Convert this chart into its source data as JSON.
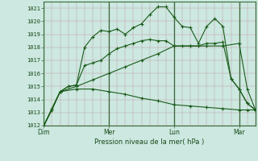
{
  "bg_color": "#cce8e0",
  "line_color": "#1a5c1a",
  "xlabel": "Pression niveau de la mer( hPa )",
  "ylim": [
    1012,
    1021.5
  ],
  "yticks": [
    1012,
    1013,
    1014,
    1015,
    1016,
    1017,
    1018,
    1019,
    1020,
    1021
  ],
  "xtick_labels": [
    "Dim",
    "Mer",
    "Lun",
    "Mar"
  ],
  "xtick_positions": [
    0,
    48,
    96,
    144
  ],
  "vline_positions": [
    0,
    48,
    96,
    144
  ],
  "series1": {
    "x": [
      0,
      6,
      12,
      18,
      24,
      30,
      36,
      42,
      48,
      54,
      60,
      66,
      72,
      78,
      84,
      90,
      96,
      102,
      108,
      114,
      120,
      126,
      132,
      138,
      144,
      150,
      156
    ],
    "y": [
      1012.0,
      1013.2,
      1014.6,
      1015.0,
      1015.1,
      1018.0,
      1018.8,
      1019.3,
      1019.2,
      1019.4,
      1019.0,
      1019.5,
      1019.8,
      1020.5,
      1021.1,
      1021.1,
      1020.3,
      1019.6,
      1019.5,
      1018.3,
      1019.6,
      1020.2,
      1019.6,
      1015.6,
      1014.8,
      1013.7,
      1013.2
    ]
  },
  "series2": {
    "x": [
      0,
      6,
      12,
      18,
      24,
      30,
      36,
      42,
      48,
      54,
      60,
      66,
      72,
      78,
      84,
      90,
      96,
      102,
      108,
      114,
      120,
      126,
      132,
      138,
      144,
      150,
      156
    ],
    "y": [
      1012.0,
      1013.3,
      1014.6,
      1015.0,
      1015.1,
      1016.6,
      1016.8,
      1017.0,
      1017.5,
      1017.9,
      1018.1,
      1018.3,
      1018.5,
      1018.6,
      1018.5,
      1018.5,
      1018.1,
      1018.1,
      1018.1,
      1018.1,
      1018.3,
      1018.3,
      1018.4,
      1015.6,
      1014.8,
      1013.7,
      1013.2
    ]
  },
  "series3": {
    "x": [
      0,
      12,
      24,
      36,
      48,
      60,
      72,
      84,
      96,
      108,
      120,
      132,
      144,
      150,
      156
    ],
    "y": [
      1012.0,
      1014.6,
      1015.0,
      1015.5,
      1016.0,
      1016.5,
      1017.0,
      1017.5,
      1018.1,
      1018.1,
      1018.1,
      1018.1,
      1018.3,
      1014.8,
      1013.2
    ]
  },
  "series4": {
    "x": [
      0,
      12,
      24,
      36,
      48,
      60,
      72,
      84,
      96,
      108,
      120,
      132,
      144,
      150,
      156
    ],
    "y": [
      1012.0,
      1014.6,
      1014.8,
      1014.8,
      1014.6,
      1014.4,
      1014.1,
      1013.9,
      1013.6,
      1013.5,
      1013.4,
      1013.3,
      1013.2,
      1013.2,
      1013.2
    ]
  }
}
